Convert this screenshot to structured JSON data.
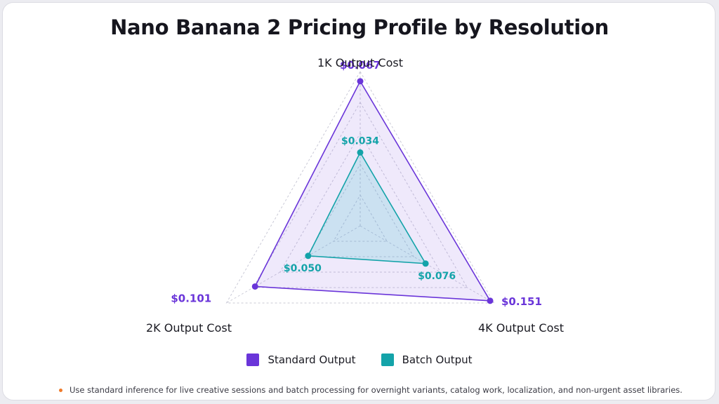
{
  "title": "Nano Banana 2 Pricing Profile by Resolution",
  "colors": {
    "standard": "#6a35d9",
    "batch": "#14a3a9",
    "footnote_bullet": "#ef7a2a"
  },
  "chart_data": {
    "type": "radar",
    "axes": [
      "1K Output Cost",
      "4K Output Cost",
      "2K Output Cost"
    ],
    "series": [
      {
        "name": "Standard Output",
        "values": [
          0.067,
          0.151,
          0.101
        ],
        "labels": [
          "$0.067",
          "$0.151",
          "$0.101"
        ]
      },
      {
        "name": "Batch Output",
        "values": [
          0.034,
          0.076,
          0.05
        ],
        "labels": [
          "$0.034",
          "$0.076",
          "$0.050"
        ]
      }
    ],
    "legend_position": "bottom",
    "grid": true
  },
  "legend": [
    {
      "label": "Standard Output"
    },
    {
      "label": "Batch Output"
    }
  ],
  "footnote": "Use standard inference for live creative sessions and batch processing for overnight variants, catalog work, localization, and non-urgent asset libraries."
}
